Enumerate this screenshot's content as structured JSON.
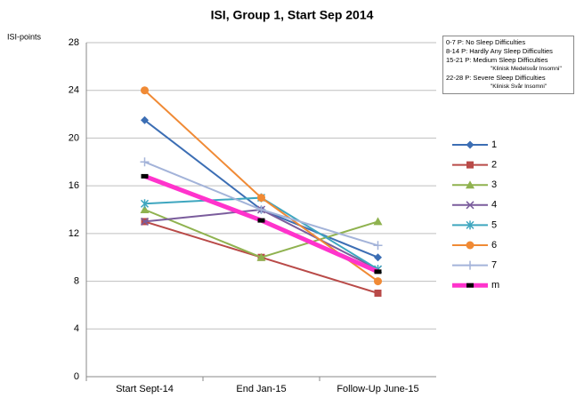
{
  "chart_data": {
    "type": "line",
    "title": "ISI, Group 1, Start Sep 2014",
    "y_label": "ISI-points",
    "categories": [
      "Start Sept-14",
      "End Jan-15",
      "Follow-Up June-15"
    ],
    "ylim": [
      0,
      28
    ],
    "yticks": [
      0,
      4,
      8,
      12,
      16,
      20,
      24,
      28
    ],
    "grid": true,
    "series": [
      {
        "name": "1",
        "color": "#3c6eb4",
        "marker": "diamond",
        "values": [
          21.5,
          14,
          10
        ]
      },
      {
        "name": "2",
        "color": "#b94a48",
        "marker": "square",
        "values": [
          13,
          10,
          7
        ]
      },
      {
        "name": "3",
        "color": "#8fb24f",
        "marker": "triangle",
        "values": [
          14,
          10,
          13
        ]
      },
      {
        "name": "4",
        "color": "#7a5c9c",
        "marker": "x",
        "values": [
          13,
          14,
          9
        ]
      },
      {
        "name": "5",
        "color": "#3ea6bf",
        "marker": "star",
        "values": [
          14.5,
          15,
          9
        ]
      },
      {
        "name": "6",
        "color": "#f08a35",
        "marker": "circle",
        "values": [
          24,
          15,
          8
        ]
      },
      {
        "name": "7",
        "color": "#a3b3d9",
        "marker": "plus",
        "values": [
          18,
          14,
          11
        ]
      },
      {
        "name": "m",
        "color": "#ff33cc",
        "marker": "blacksquare",
        "width": 5,
        "values": [
          16.8,
          13.1,
          8.8
        ]
      }
    ],
    "note_lines": [
      {
        "text": "0-7 P:    No Sleep Difficulties"
      },
      {
        "text": "8-14 P:  Hardly  Any Sleep Difficulties"
      },
      {
        "text": "15-21 P:  Medium Sleep Difficulties"
      },
      {
        "text": "\"Klinisk Medelsvår Insomni\"",
        "sub": true
      },
      {
        "text": "22-28 P:  Severe Sleep Difficulties"
      },
      {
        "text": "\"Klinisk Svår Insomni\"",
        "sub": true
      }
    ]
  }
}
